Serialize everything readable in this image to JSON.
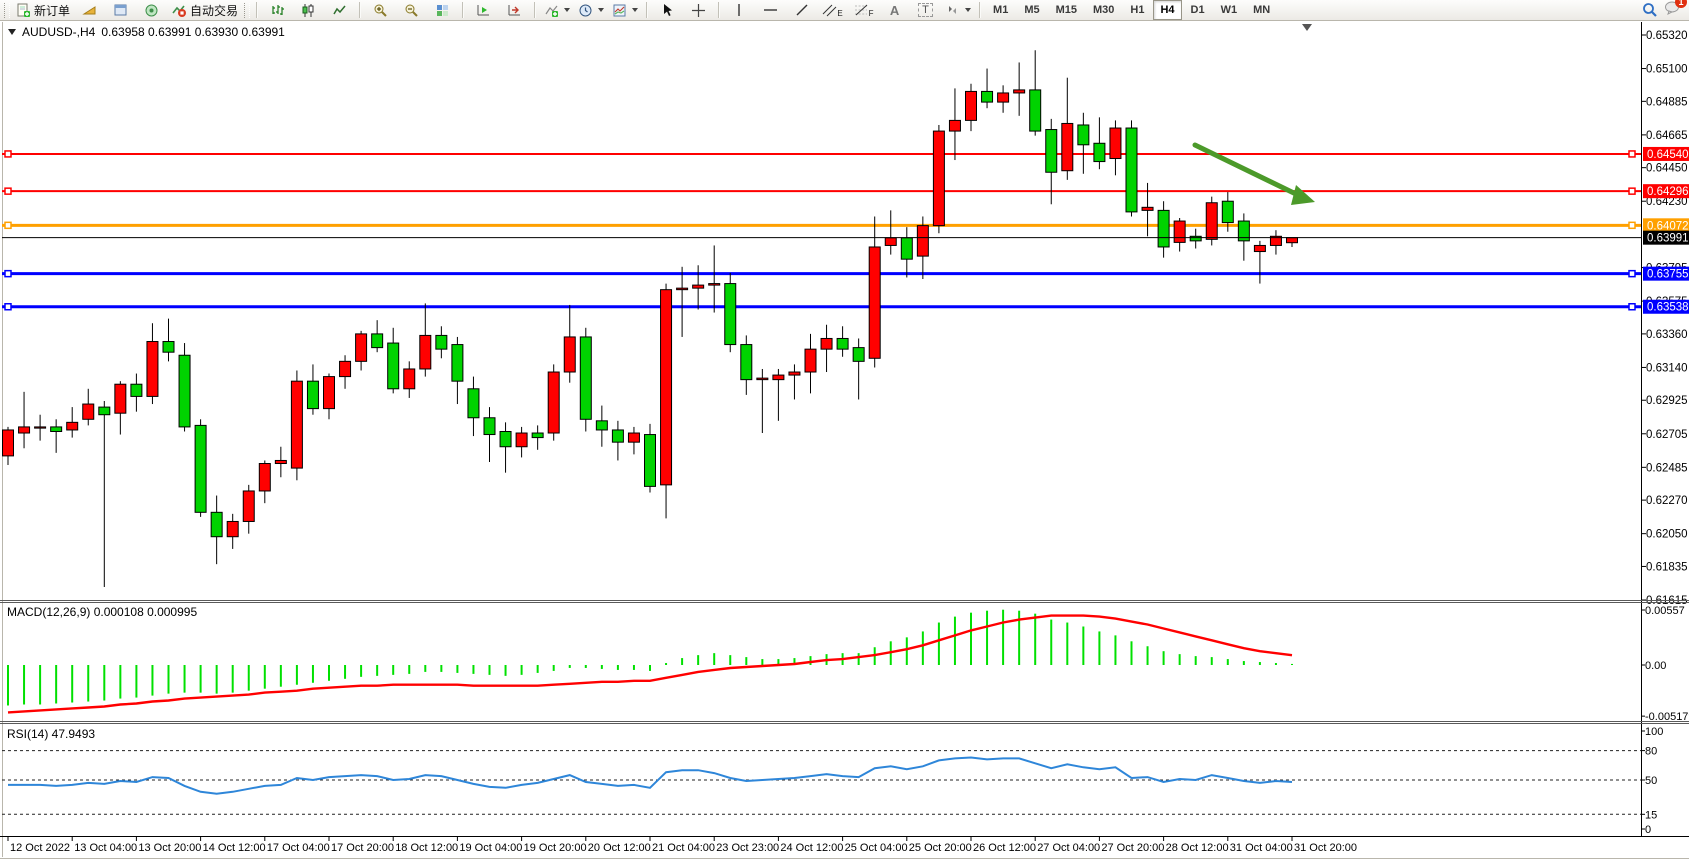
{
  "toolbar": {
    "new_order_label": "新订单",
    "autotrade_label": "自动交易",
    "timeframes": [
      "M1",
      "M5",
      "M15",
      "M30",
      "H1",
      "H4",
      "D1",
      "W1",
      "MN"
    ],
    "active_timeframe": "H4",
    "notification_count": "1",
    "drawing_glyphs": {
      "vline": "|",
      "hline": "—",
      "trend": "/",
      "channel": "E",
      "fibo": "F",
      "text": "A",
      "label": "T"
    }
  },
  "title": {
    "symbol": "AUDUSD-,H4",
    "quotes": "0.63958 0.63991 0.63930 0.63991"
  },
  "indicators": {
    "macd": {
      "label": "MACD(12,26,9) 0.000108 0.000995",
      "axis_ticks": [
        "0.00557",
        "0.00",
        "-0.005179"
      ],
      "values": [
        -0.0041,
        -0.004,
        -0.004,
        -0.0039,
        -0.0038,
        -0.0037,
        -0.0036,
        -0.0034,
        -0.0033,
        -0.0031,
        -0.0029,
        -0.0028,
        -0.0028,
        -0.0029,
        -0.0028,
        -0.0026,
        -0.0024,
        -0.0022,
        -0.002,
        -0.0018,
        -0.0016,
        -0.0014,
        -0.0012,
        -0.0011,
        -0.001,
        -0.0009,
        -0.0007,
        -0.0007,
        -0.0008,
        -0.0009,
        -0.001,
        -0.0011,
        -0.001,
        -0.0008,
        -0.0006,
        -0.0003,
        -0.0003,
        -0.0004,
        -0.0005,
        -0.0005,
        -0.0006,
        0.0002,
        0.0007,
        0.001,
        0.0012,
        0.001,
        0.0008,
        0.0006,
        0.0006,
        0.0007,
        0.0009,
        0.0011,
        0.0012,
        0.0012,
        0.0018,
        0.0024,
        0.0028,
        0.0034,
        0.0043,
        0.0049,
        0.0053,
        0.0055,
        0.0056,
        0.0055,
        0.0052,
        0.0046,
        0.0043,
        0.0039,
        0.0034,
        0.003,
        0.0024,
        0.0019,
        0.0014,
        0.0011,
        0.0009,
        0.0008,
        0.0006,
        0.0004,
        0.0003,
        0.0002,
        0.000108
      ],
      "signal": [
        -0.0048,
        -0.0047,
        -0.0046,
        -0.0045,
        -0.0044,
        -0.0043,
        -0.0042,
        -0.004,
        -0.0039,
        -0.0037,
        -0.0036,
        -0.0034,
        -0.0033,
        -0.0032,
        -0.0031,
        -0.003,
        -0.0028,
        -0.0027,
        -0.0026,
        -0.0024,
        -0.0023,
        -0.0022,
        -0.0021,
        -0.0021,
        -0.002,
        -0.002,
        -0.002,
        -0.002,
        -0.002,
        -0.0021,
        -0.0021,
        -0.0021,
        -0.0021,
        -0.0021,
        -0.002,
        -0.0019,
        -0.0018,
        -0.0017,
        -0.0017,
        -0.0016,
        -0.0016,
        -0.0013,
        -0.001,
        -0.0007,
        -0.0005,
        -0.0003,
        -0.0002,
        -0.0001,
        0.0,
        0.0001,
        0.0003,
        0.0005,
        0.0006,
        0.0008,
        0.001,
        0.0013,
        0.0016,
        0.002,
        0.0025,
        0.003,
        0.0035,
        0.0039,
        0.0043,
        0.0046,
        0.0048,
        0.005,
        0.005,
        0.005,
        0.0049,
        0.0047,
        0.0044,
        0.0041,
        0.0037,
        0.0033,
        0.0029,
        0.0025,
        0.0021,
        0.0017,
        0.0014,
        0.0012,
        0.000995
      ]
    },
    "rsi": {
      "label": "RSI(14) 47.9493",
      "axis_ticks": [
        "100",
        "80",
        "50",
        "15",
        "0"
      ],
      "levels": [
        80,
        50,
        15
      ],
      "values": [
        45,
        45,
        45,
        44,
        45,
        47,
        46,
        49,
        48,
        53,
        52,
        44,
        38,
        36,
        38,
        41,
        44,
        45,
        52,
        50,
        53,
        54,
        55,
        54,
        50,
        51,
        55,
        54,
        50,
        46,
        43,
        42,
        45,
        47,
        51,
        55,
        48,
        46,
        44,
        45,
        42,
        58,
        60,
        60,
        57,
        52,
        49,
        50,
        51,
        52,
        54,
        56,
        54,
        53,
        62,
        64,
        61,
        64,
        70,
        72,
        73,
        71,
        72,
        72,
        67,
        62,
        66,
        63,
        61,
        63,
        52,
        53,
        48,
        51,
        50,
        55,
        52,
        49,
        47,
        49,
        47.9493
      ]
    }
  },
  "chart_data": {
    "type": "candlestick",
    "title": "AUDUSD-,H4",
    "symbol": "AUDUSD-",
    "timeframe": "H4",
    "ylim": [
      0.61615,
      0.6532
    ],
    "grid": false,
    "colors": {
      "up": "#ff0000",
      "down": "#00d300",
      "wick": "#000000",
      "macd_hist": "#00e000",
      "macd_signal": "#ff0000",
      "rsi_line": "#2e86d9",
      "arrow": "#4c9a2a",
      "level_red": "#ff0000",
      "level_orange": "#ffa000",
      "level_blue": "#0000ff",
      "bid_black": "#000000"
    },
    "y_axis_ticks": [
      "0.65320",
      "0.65100",
      "0.64885",
      "0.64665",
      "0.64450",
      "0.64230",
      "0.63795",
      "0.63575",
      "0.63360",
      "0.63140",
      "0.62925",
      "0.62705",
      "0.62485",
      "0.62270",
      "0.62050",
      "0.61835",
      "0.61615"
    ],
    "x_labels": [
      "12 Oct 2022",
      "13 Oct 04:00",
      "13 Oct 20:00",
      "14 Oct 12:00",
      "17 Oct 04:00",
      "17 Oct 20:00",
      "18 Oct 12:00",
      "19 Oct 04:00",
      "19 Oct 20:00",
      "20 Oct 12:00",
      "21 Oct 04:00",
      "23 Oct 23:00",
      "24 Oct 12:00",
      "25 Oct 04:00",
      "25 Oct 20:00",
      "26 Oct 12:00",
      "27 Oct 04:00",
      "27 Oct 20:00",
      "28 Oct 12:00",
      "31 Oct 04:00",
      "31 Oct 20:00"
    ],
    "candles": [
      [
        0.6256,
        0.6275,
        0.625,
        0.6273
      ],
      [
        0.6271,
        0.6298,
        0.6261,
        0.6275
      ],
      [
        0.6275,
        0.6283,
        0.6266,
        0.6275
      ],
      [
        0.6275,
        0.628,
        0.6258,
        0.6272
      ],
      [
        0.6273,
        0.6288,
        0.6268,
        0.6278
      ],
      [
        0.628,
        0.63,
        0.6276,
        0.629
      ],
      [
        0.6288,
        0.6292,
        0.617,
        0.6283
      ],
      [
        0.6284,
        0.6305,
        0.627,
        0.6303
      ],
      [
        0.6303,
        0.631,
        0.6285,
        0.6295
      ],
      [
        0.6295,
        0.6343,
        0.629,
        0.6331
      ],
      [
        0.6331,
        0.6346,
        0.6318,
        0.6324
      ],
      [
        0.6322,
        0.633,
        0.6272,
        0.6275
      ],
      [
        0.6276,
        0.628,
        0.6216,
        0.6219
      ],
      [
        0.6219,
        0.623,
        0.6185,
        0.6203
      ],
      [
        0.6203,
        0.6218,
        0.6195,
        0.6213
      ],
      [
        0.6213,
        0.6237,
        0.6205,
        0.6233
      ],
      [
        0.6233,
        0.6253,
        0.6225,
        0.6251
      ],
      [
        0.6251,
        0.6262,
        0.6242,
        0.6253
      ],
      [
        0.6248,
        0.6312,
        0.624,
        0.6305
      ],
      [
        0.6305,
        0.6316,
        0.6283,
        0.6287
      ],
      [
        0.6287,
        0.631,
        0.628,
        0.6308
      ],
      [
        0.6308,
        0.6322,
        0.63,
        0.6318
      ],
      [
        0.6318,
        0.6338,
        0.6312,
        0.6336
      ],
      [
        0.6336,
        0.6345,
        0.6324,
        0.6327
      ],
      [
        0.633,
        0.634,
        0.6297,
        0.63
      ],
      [
        0.63,
        0.6318,
        0.6294,
        0.6313
      ],
      [
        0.6313,
        0.6356,
        0.6308,
        0.6335
      ],
      [
        0.6335,
        0.6341,
        0.632,
        0.6326
      ],
      [
        0.6329,
        0.6334,
        0.629,
        0.6305
      ],
      [
        0.63,
        0.6308,
        0.6269,
        0.6281
      ],
      [
        0.6281,
        0.6288,
        0.6252,
        0.627
      ],
      [
        0.6272,
        0.6278,
        0.6245,
        0.6262
      ],
      [
        0.6262,
        0.6275,
        0.6255,
        0.6271
      ],
      [
        0.6271,
        0.6276,
        0.626,
        0.6268
      ],
      [
        0.6271,
        0.6316,
        0.6266,
        0.6311
      ],
      [
        0.6311,
        0.6355,
        0.6304,
        0.6334
      ],
      [
        0.6334,
        0.634,
        0.6272,
        0.628
      ],
      [
        0.6279,
        0.6289,
        0.6262,
        0.6273
      ],
      [
        0.6273,
        0.6279,
        0.6253,
        0.6265
      ],
      [
        0.6265,
        0.6275,
        0.6257,
        0.6271
      ],
      [
        0.627,
        0.6277,
        0.6232,
        0.6236
      ],
      [
        0.6237,
        0.6369,
        0.6215,
        0.6365
      ],
      [
        0.6365,
        0.638,
        0.6334,
        0.6366
      ],
      [
        0.6366,
        0.6381,
        0.6352,
        0.6368
      ],
      [
        0.6368,
        0.6394,
        0.635,
        0.6369
      ],
      [
        0.6369,
        0.6376,
        0.6324,
        0.6329
      ],
      [
        0.6329,
        0.6335,
        0.6296,
        0.6306
      ],
      [
        0.6306,
        0.6313,
        0.6271,
        0.6307
      ],
      [
        0.6306,
        0.6313,
        0.6279,
        0.6309
      ],
      [
        0.6309,
        0.6316,
        0.6293,
        0.6311
      ],
      [
        0.6311,
        0.6336,
        0.6297,
        0.6326
      ],
      [
        0.6326,
        0.6342,
        0.6311,
        0.6333
      ],
      [
        0.6333,
        0.6341,
        0.6321,
        0.6326
      ],
      [
        0.6327,
        0.6333,
        0.6293,
        0.6318
      ],
      [
        0.632,
        0.6413,
        0.6314,
        0.6393
      ],
      [
        0.6394,
        0.6417,
        0.6388,
        0.6399
      ],
      [
        0.6399,
        0.6406,
        0.6373,
        0.6385
      ],
      [
        0.6387,
        0.6413,
        0.6372,
        0.6407
      ],
      [
        0.6407,
        0.6473,
        0.6402,
        0.6469
      ],
      [
        0.6469,
        0.6497,
        0.645,
        0.6476
      ],
      [
        0.6476,
        0.65,
        0.6469,
        0.6495
      ],
      [
        0.6495,
        0.651,
        0.6484,
        0.6488
      ],
      [
        0.6488,
        0.6499,
        0.6481,
        0.6494
      ],
      [
        0.6494,
        0.6514,
        0.6479,
        0.6496
      ],
      [
        0.6496,
        0.6522,
        0.6466,
        0.6469
      ],
      [
        0.647,
        0.6477,
        0.6421,
        0.6442
      ],
      [
        0.6443,
        0.6504,
        0.6437,
        0.6474
      ],
      [
        0.6473,
        0.6481,
        0.6441,
        0.646
      ],
      [
        0.6461,
        0.6478,
        0.6444,
        0.6449
      ],
      [
        0.6451,
        0.6476,
        0.644,
        0.6471
      ],
      [
        0.6471,
        0.6476,
        0.6413,
        0.6416
      ],
      [
        0.6417,
        0.6435,
        0.64,
        0.6419
      ],
      [
        0.6417,
        0.6423,
        0.6386,
        0.6393
      ],
      [
        0.6396,
        0.6412,
        0.639,
        0.641
      ],
      [
        0.64,
        0.6405,
        0.6392,
        0.6397
      ],
      [
        0.6398,
        0.6426,
        0.6394,
        0.6422
      ],
      [
        0.6423,
        0.6429,
        0.6403,
        0.6409
      ],
      [
        0.641,
        0.6415,
        0.6384,
        0.6397
      ],
      [
        0.639,
        0.6397,
        0.6369,
        0.6394
      ],
      [
        0.6394,
        0.6404,
        0.6388,
        0.64
      ],
      [
        0.63958,
        0.63991,
        0.6393,
        0.63991
      ]
    ],
    "horizontal_lines": [
      {
        "price": 0.6454,
        "label": "0.64540",
        "color": "#ff0000",
        "width": 2
      },
      {
        "price": 0.64296,
        "label": "0.64296",
        "color": "#ff0000",
        "width": 2
      },
      {
        "price": 0.64072,
        "label": "0.64072",
        "color": "#ffa000",
        "width": 3
      },
      {
        "price": 0.63755,
        "label": "0.63755",
        "color": "#0000ff",
        "width": 3
      },
      {
        "price": 0.63538,
        "label": "0.63538",
        "color": "#0000ff",
        "width": 3
      }
    ],
    "bid_line": {
      "price": 0.63991,
      "label": "0.63991",
      "color": "#000000"
    },
    "arrow_annotation": {
      "from": [
        1195,
        145
      ],
      "to": [
        1300,
        196
      ],
      "tip": [
        1315,
        202
      ],
      "color": "#4c9a2a"
    }
  }
}
